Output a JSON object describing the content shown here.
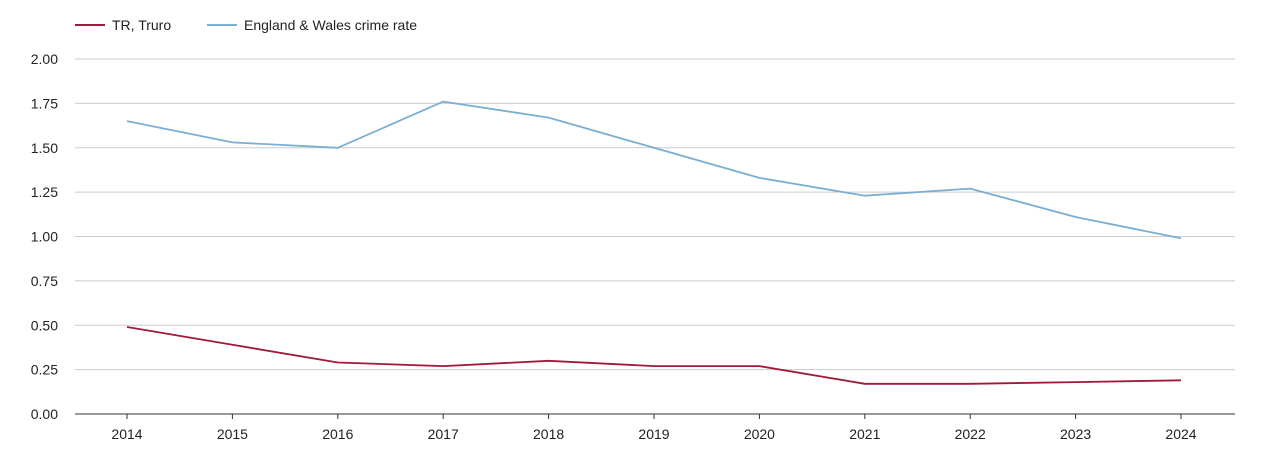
{
  "chart_data": {
    "type": "line",
    "title": "",
    "xlabel": "",
    "ylabel": "",
    "x": [
      "2014",
      "2015",
      "2016",
      "2017",
      "2018",
      "2019",
      "2020",
      "2021",
      "2022",
      "2023",
      "2024"
    ],
    "ylim": [
      0,
      2
    ],
    "y_ticks": [
      "0.00",
      "0.25",
      "0.50",
      "0.75",
      "1.00",
      "1.25",
      "1.50",
      "1.75",
      "2.00"
    ],
    "grid": true,
    "legend_position": "top-left",
    "series": [
      {
        "name": "TR, Truro",
        "color": "#a0183a",
        "values": [
          0.49,
          0.39,
          0.29,
          0.27,
          0.3,
          0.27,
          0.27,
          0.17,
          0.17,
          0.18,
          0.19
        ]
      },
      {
        "name": "England & Wales crime rate",
        "color": "#7aaed3",
        "values": [
          1.65,
          1.53,
          1.5,
          1.76,
          1.67,
          1.5,
          1.33,
          1.23,
          1.27,
          1.11,
          0.99
        ]
      }
    ]
  }
}
